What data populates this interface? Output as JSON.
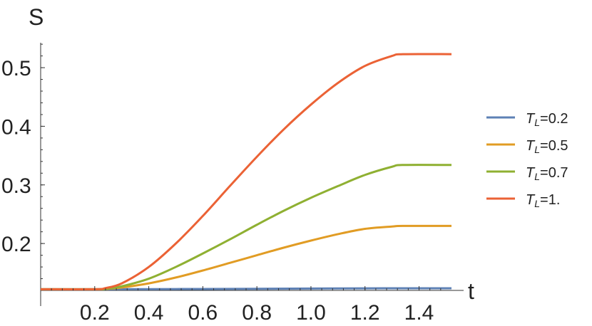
{
  "chart_data": {
    "type": "line",
    "title": "",
    "xlabel": "t",
    "ylabel": "S",
    "xlim": [
      0,
      1.52
    ],
    "ylim": [
      0.12,
      0.545
    ],
    "x_ticks": [
      0.2,
      0.4,
      0.6,
      0.8,
      1.0,
      1.2,
      1.4
    ],
    "x_tick_labels": [
      "0.2",
      "0.4",
      "0.6",
      "0.8",
      "1.0",
      "1.2",
      "1.4"
    ],
    "y_ticks": [
      0.2,
      0.3,
      0.4,
      0.5
    ],
    "y_tick_labels": [
      "0.2",
      "0.3",
      "0.4",
      "0.5"
    ],
    "grid": false,
    "legend_position": "right",
    "series": [
      {
        "name": "T",
        "name_sub": "L",
        "name_suffix": "=0.2",
        "color": "#5E81B5",
        "x": [
          0,
          0.2,
          0.4,
          0.6,
          0.8,
          1.0,
          1.2,
          1.34,
          1.52
        ],
        "y": [
          0.122,
          0.122,
          0.1222,
          0.1225,
          0.1228,
          0.1232,
          0.1235,
          0.1237,
          0.1237
        ]
      },
      {
        "name": "T",
        "name_sub": "L",
        "name_suffix": "=0.5",
        "color": "#E19C24",
        "x": [
          0,
          0.2,
          0.24,
          0.3,
          0.4,
          0.5,
          0.6,
          0.7,
          0.8,
          0.9,
          1.0,
          1.1,
          1.2,
          1.3,
          1.34,
          1.52
        ],
        "y": [
          0.122,
          0.122,
          0.1225,
          0.125,
          0.132,
          0.142,
          0.154,
          0.167,
          0.18,
          0.193,
          0.205,
          0.216,
          0.225,
          0.229,
          0.23,
          0.23
        ]
      },
      {
        "name": "T",
        "name_sub": "L",
        "name_suffix": "=0.7",
        "color": "#8FB032",
        "x": [
          0,
          0.2,
          0.24,
          0.3,
          0.4,
          0.5,
          0.6,
          0.7,
          0.8,
          0.9,
          1.0,
          1.1,
          1.2,
          1.3,
          1.34,
          1.52
        ],
        "y": [
          0.122,
          0.122,
          0.1225,
          0.127,
          0.14,
          0.16,
          0.183,
          0.207,
          0.232,
          0.256,
          0.278,
          0.298,
          0.317,
          0.331,
          0.334,
          0.334
        ]
      },
      {
        "name": "T",
        "name_sub": "L",
        "name_suffix": "=1.",
        "color": "#EB6235",
        "x": [
          0,
          0.2,
          0.24,
          0.3,
          0.4,
          0.5,
          0.6,
          0.7,
          0.8,
          0.9,
          1.0,
          1.1,
          1.2,
          1.3,
          1.34,
          1.52
        ],
        "y": [
          0.122,
          0.122,
          0.124,
          0.132,
          0.16,
          0.2,
          0.247,
          0.298,
          0.348,
          0.395,
          0.437,
          0.474,
          0.503,
          0.52,
          0.523,
          0.523
        ]
      }
    ]
  }
}
